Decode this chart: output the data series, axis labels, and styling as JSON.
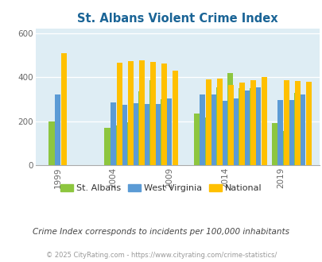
{
  "title": "St. Albans Violent Crime Index",
  "subtitle": "Crime Index corresponds to incidents per 100,000 inhabitants",
  "footer": "© 2025 CityRating.com - https://www.cityrating.com/crime-statistics/",
  "years": [
    1999,
    2004,
    2005,
    2006,
    2007,
    2008,
    2009,
    2012,
    2013,
    2014,
    2015,
    2016,
    2017,
    2019,
    2020,
    2021
  ],
  "st_albans": [
    200,
    170,
    180,
    195,
    335,
    385,
    300,
    235,
    215,
    355,
    420,
    350,
    350,
    190,
    155,
    330
  ],
  "west_virginia": [
    320,
    285,
    275,
    280,
    278,
    278,
    302,
    320,
    320,
    293,
    302,
    340,
    352,
    295,
    295,
    320
  ],
  "national": [
    510,
    465,
    472,
    475,
    468,
    463,
    430,
    390,
    393,
    365,
    375,
    385,
    400,
    385,
    383,
    378
  ],
  "tick_years": [
    1999,
    2004,
    2009,
    2014,
    2019
  ],
  "color_st_albans": "#8dc63f",
  "color_west_virginia": "#5b9bd5",
  "color_national": "#ffc000",
  "background_color": "#deedf4",
  "ylim": [
    0,
    620
  ],
  "yticks": [
    0,
    200,
    400,
    600
  ],
  "title_color": "#1a6496",
  "subtitle_color": "#444444",
  "footer_color": "#999999",
  "xlim_left": 1997.0,
  "xlim_right": 2022.5
}
